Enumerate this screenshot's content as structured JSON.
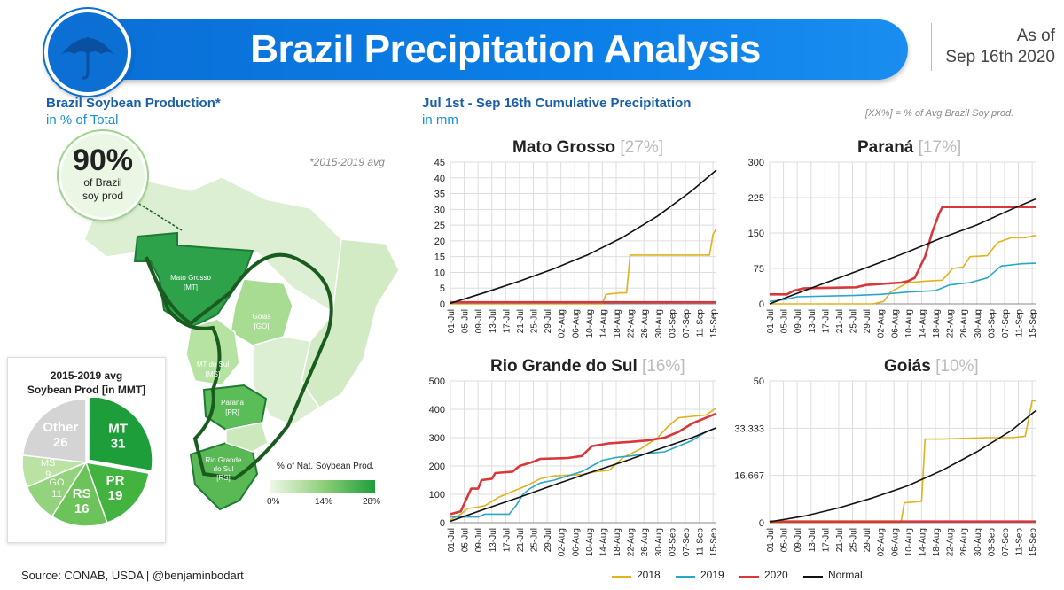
{
  "header": {
    "title": "Brazil Precipitation Analysis",
    "as_of_label": "As of",
    "as_of_date": "Sep 16th 2020"
  },
  "left": {
    "title": "Brazil Soybean Production*",
    "subtitle": "in % of Total",
    "avg_note": "*2015-2019 avg",
    "callout_pct": "90%",
    "callout_line1": "of Brazil",
    "callout_line2": "soy prod",
    "states": [
      {
        "name": "Mato Grosso",
        "abbr": "[MT]"
      },
      {
        "name": "Goiás",
        "abbr": "[GO]"
      },
      {
        "name": "MT do Sul",
        "abbr": "[MS]"
      },
      {
        "name": "Paraná",
        "abbr": "[PR]"
      },
      {
        "name": "Rio Grande",
        "name2": "do Sul",
        "abbr": "[RS]"
      }
    ],
    "map_legend": {
      "title": "% of Nat. Soybean Prod.",
      "min": "0%",
      "mid": "14%",
      "max": "28%"
    },
    "pie": {
      "title_line1": "2015-2019 avg",
      "title_line2": "Soybean Prod [in MMT]",
      "slices": [
        {
          "label": "MT",
          "value": 31,
          "color": "#1e9e3a"
        },
        {
          "label": "PR",
          "value": 19,
          "color": "#43b33f"
        },
        {
          "label": "RS",
          "value": 16,
          "color": "#6cc35a"
        },
        {
          "label": "GO",
          "value": 11,
          "color": "#94d37d"
        },
        {
          "label": "MS",
          "value": 9,
          "color": "#b9e2a3"
        },
        {
          "label": "Other",
          "value": 26,
          "color": "#d4d4d4"
        }
      ]
    }
  },
  "right": {
    "title": "Jul 1st - Sep 16th Cumulative Precipitation",
    "subtitle": "in mm",
    "note": "[XX%] = % of Avg Brazil Soy prod."
  },
  "source": "Source: CONAB, USDA | @benjaminbodart",
  "legend": [
    {
      "name": "2018",
      "color": "#e0b21b"
    },
    {
      "name": "2019",
      "color": "#2aa6c9"
    },
    {
      "name": "2020",
      "color": "#d9383a"
    },
    {
      "name": "Normal",
      "color": "#111111"
    }
  ],
  "chart_data": [
    {
      "type": "line",
      "title": "Mato Grosso",
      "share": "[27%]",
      "x": [
        "01-Jul",
        "05-Jul",
        "09-Jul",
        "13-Jul",
        "17-Jul",
        "21-Jul",
        "25-Jul",
        "29-Jul",
        "02-Aug",
        "06-Aug",
        "10-Aug",
        "14-Aug",
        "18-Aug",
        "22-Aug",
        "26-Aug",
        "30-Aug",
        "03-Sep",
        "07-Sep",
        "11-Sep",
        "15-Sep"
      ],
      "ylim": [
        0,
        45
      ],
      "yticks": [
        "0",
        "5",
        "10",
        "15",
        "20",
        "25",
        "30",
        "35",
        "40",
        "45"
      ],
      "series": [
        {
          "name": "2018",
          "points": [
            [
              0,
              0
            ],
            [
              44,
              0
            ],
            [
              45,
              3
            ],
            [
              49,
              3.5
            ],
            [
              51,
              3.5
            ],
            [
              52,
              15.5
            ],
            [
              75,
              15.5
            ],
            [
              76,
              22
            ],
            [
              77,
              24
            ]
          ]
        },
        {
          "name": "2019",
          "points": [
            [
              0,
              0.3
            ],
            [
              77,
              0.3
            ]
          ]
        },
        {
          "name": "2020",
          "points": [
            [
              0,
              0.5
            ],
            [
              77,
              0.5
            ]
          ]
        },
        {
          "name": "Normal",
          "points": [
            [
              0,
              0.2
            ],
            [
              10,
              3.6
            ],
            [
              20,
              7.2
            ],
            [
              30,
              11.2
            ],
            [
              40,
              15.7
            ],
            [
              50,
              21.2
            ],
            [
              60,
              27.9
            ],
            [
              70,
              36
            ],
            [
              77,
              42.5
            ]
          ]
        }
      ]
    },
    {
      "type": "line",
      "title": "Paraná",
      "share": "[17%]",
      "x": [
        "01-Jul",
        "05-Jul",
        "09-Jul",
        "13-Jul",
        "17-Jul",
        "21-Jul",
        "25-Jul",
        "29-Jul",
        "02-Aug",
        "06-Aug",
        "10-Aug",
        "14-Aug",
        "18-Aug",
        "22-Aug",
        "26-Aug",
        "30-Aug",
        "03-Sep",
        "07-Sep",
        "11-Sep",
        "15-Sep"
      ],
      "ylim": [
        0,
        300
      ],
      "yticks": [
        "0",
        "75",
        "150",
        "225",
        "300"
      ],
      "series": [
        {
          "name": "2018",
          "points": [
            [
              0,
              0
            ],
            [
              30,
              0
            ],
            [
              33,
              5
            ],
            [
              35,
              25
            ],
            [
              40,
              45
            ],
            [
              45,
              48
            ],
            [
              50,
              50
            ],
            [
              53,
              75
            ],
            [
              56,
              78
            ],
            [
              58,
              100
            ],
            [
              63,
              102
            ],
            [
              66,
              130
            ],
            [
              70,
              140
            ],
            [
              74,
              140
            ],
            [
              77,
              145
            ]
          ]
        },
        {
          "name": "2019",
          "points": [
            [
              0,
              5
            ],
            [
              5,
              10
            ],
            [
              8,
              15
            ],
            [
              25,
              18
            ],
            [
              32,
              20
            ],
            [
              40,
              25
            ],
            [
              48,
              28
            ],
            [
              52,
              40
            ],
            [
              58,
              45
            ],
            [
              63,
              55
            ],
            [
              67,
              80
            ],
            [
              73,
              85
            ],
            [
              77,
              86
            ]
          ]
        },
        {
          "name": "2020",
          "points": [
            [
              0,
              20
            ],
            [
              5,
              20
            ],
            [
              7,
              28
            ],
            [
              10,
              33
            ],
            [
              25,
              35
            ],
            [
              28,
              40
            ],
            [
              38,
              45
            ],
            [
              40,
              48
            ],
            [
              42,
              55
            ],
            [
              45,
              100
            ],
            [
              47,
              150
            ],
            [
              49,
              190
            ],
            [
              50,
              205
            ],
            [
              77,
              205
            ]
          ]
        },
        {
          "name": "Normal",
          "points": [
            [
              0,
              0
            ],
            [
              10,
              28
            ],
            [
              20,
              55
            ],
            [
              30,
              82
            ],
            [
              40,
              110
            ],
            [
              50,
              140
            ],
            [
              60,
              167
            ],
            [
              70,
              200
            ],
            [
              77,
              222
            ]
          ]
        }
      ]
    },
    {
      "type": "line",
      "title": "Rio Grande do Sul",
      "share": "[16%]",
      "x": [
        "01-Jul",
        "05-Jul",
        "09-Jul",
        "13-Jul",
        "17-Jul",
        "21-Jul",
        "25-Jul",
        "29-Jul",
        "02-Aug",
        "06-Aug",
        "10-Aug",
        "14-Aug",
        "18-Aug",
        "22-Aug",
        "26-Aug",
        "30-Aug",
        "03-Sep",
        "07-Sep",
        "11-Sep",
        "15-Sep"
      ],
      "ylim": [
        0,
        500
      ],
      "yticks": [
        "0",
        "100",
        "200",
        "300",
        "400",
        "500"
      ],
      "series": [
        {
          "name": "2018",
          "points": [
            [
              0,
              10
            ],
            [
              3,
              30
            ],
            [
              5,
              50
            ],
            [
              8,
              55
            ],
            [
              10,
              60
            ],
            [
              14,
              90
            ],
            [
              18,
              110
            ],
            [
              22,
              130
            ],
            [
              26,
              155
            ],
            [
              30,
              165
            ],
            [
              38,
              170
            ],
            [
              42,
              180
            ],
            [
              46,
              185
            ],
            [
              50,
              230
            ],
            [
              55,
              260
            ],
            [
              60,
              300
            ],
            [
              63,
              340
            ],
            [
              66,
              370
            ],
            [
              70,
              375
            ],
            [
              74,
              380
            ],
            [
              77,
              405
            ]
          ]
        },
        {
          "name": "2019",
          "points": [
            [
              0,
              20
            ],
            [
              8,
              20
            ],
            [
              10,
              30
            ],
            [
              17,
              30
            ],
            [
              19,
              60
            ],
            [
              21,
              100
            ],
            [
              23,
              120
            ],
            [
              26,
              140
            ],
            [
              30,
              150
            ],
            [
              34,
              165
            ],
            [
              38,
              180
            ],
            [
              41,
              200
            ],
            [
              44,
              220
            ],
            [
              48,
              230
            ],
            [
              52,
              235
            ],
            [
              58,
              245
            ],
            [
              62,
              250
            ],
            [
              66,
              270
            ],
            [
              70,
              290
            ],
            [
              74,
              320
            ],
            [
              77,
              335
            ]
          ]
        },
        {
          "name": "2020",
          "points": [
            [
              0,
              30
            ],
            [
              3,
              40
            ],
            [
              6,
              120
            ],
            [
              8,
              120
            ],
            [
              9,
              150
            ],
            [
              12,
              155
            ],
            [
              13,
              175
            ],
            [
              18,
              180
            ],
            [
              20,
              200
            ],
            [
              24,
              215
            ],
            [
              26,
              225
            ],
            [
              34,
              228
            ],
            [
              38,
              235
            ],
            [
              41,
              270
            ],
            [
              46,
              280
            ],
            [
              52,
              285
            ],
            [
              57,
              290
            ],
            [
              62,
              300
            ],
            [
              66,
              320
            ],
            [
              70,
              350
            ],
            [
              74,
              370
            ],
            [
              77,
              385
            ]
          ]
        },
        {
          "name": "Normal",
          "points": [
            [
              0,
              5
            ],
            [
              10,
              48
            ],
            [
              20,
              90
            ],
            [
              30,
              133
            ],
            [
              40,
              175
            ],
            [
              50,
              215
            ],
            [
              60,
              258
            ],
            [
              70,
              300
            ],
            [
              77,
              335
            ]
          ]
        }
      ]
    },
    {
      "type": "line",
      "title": "Goiás",
      "share": "[10%]",
      "x": [
        "01-Jul",
        "05-Jul",
        "09-Jul",
        "13-Jul",
        "17-Jul",
        "21-Jul",
        "25-Jul",
        "29-Jul",
        "02-Aug",
        "06-Aug",
        "10-Aug",
        "14-Aug",
        "18-Aug",
        "22-Aug",
        "26-Aug",
        "30-Aug",
        "03-Sep",
        "07-Sep",
        "11-Sep",
        "15-Sep"
      ],
      "ylim": [
        0,
        50
      ],
      "yticks": [
        "0",
        "16.667",
        "33.333",
        "50"
      ],
      "series": [
        {
          "name": "2018",
          "points": [
            [
              0,
              0
            ],
            [
              38,
              0
            ],
            [
              39,
              7
            ],
            [
              44,
              7.5
            ],
            [
              45,
              29.5
            ],
            [
              50,
              29.5
            ],
            [
              63,
              30
            ],
            [
              70,
              30
            ],
            [
              74,
              30.5
            ],
            [
              76,
              43
            ],
            [
              77,
              43
            ]
          ]
        },
        {
          "name": "2019",
          "points": [
            [
              0,
              0.2
            ],
            [
              77,
              0.2
            ]
          ]
        },
        {
          "name": "2020",
          "points": [
            [
              0,
              0.4
            ],
            [
              77,
              0.4
            ]
          ]
        },
        {
          "name": "Normal",
          "points": [
            [
              0,
              0.3
            ],
            [
              10,
              2.3
            ],
            [
              20,
              5.2
            ],
            [
              30,
              8.8
            ],
            [
              40,
              13
            ],
            [
              50,
              18.5
            ],
            [
              60,
              25
            ],
            [
              70,
              32.5
            ],
            [
              77,
              39.5
            ]
          ]
        }
      ]
    }
  ]
}
